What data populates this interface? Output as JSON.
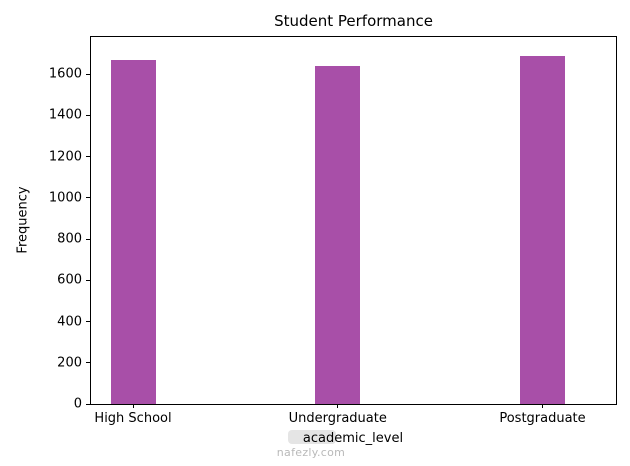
{
  "chart": {
    "watermark": "nafezly.com"
  },
  "chart_data": {
    "type": "bar",
    "title": "Student Performance",
    "xlabel": "academic_level",
    "ylabel": "Frequency",
    "categories": [
      "High School",
      "Undergraduate",
      "Postgraduate"
    ],
    "values": [
      1670,
      1640,
      1690
    ],
    "yticks": [
      0,
      200,
      400,
      600,
      800,
      1000,
      1200,
      1400,
      1600
    ],
    "ylim": [
      0,
      1780
    ],
    "bar_color": "#a84fa8",
    "grid": false,
    "legend": null,
    "bar_centers": [
      0.08,
      0.47,
      0.86
    ]
  }
}
